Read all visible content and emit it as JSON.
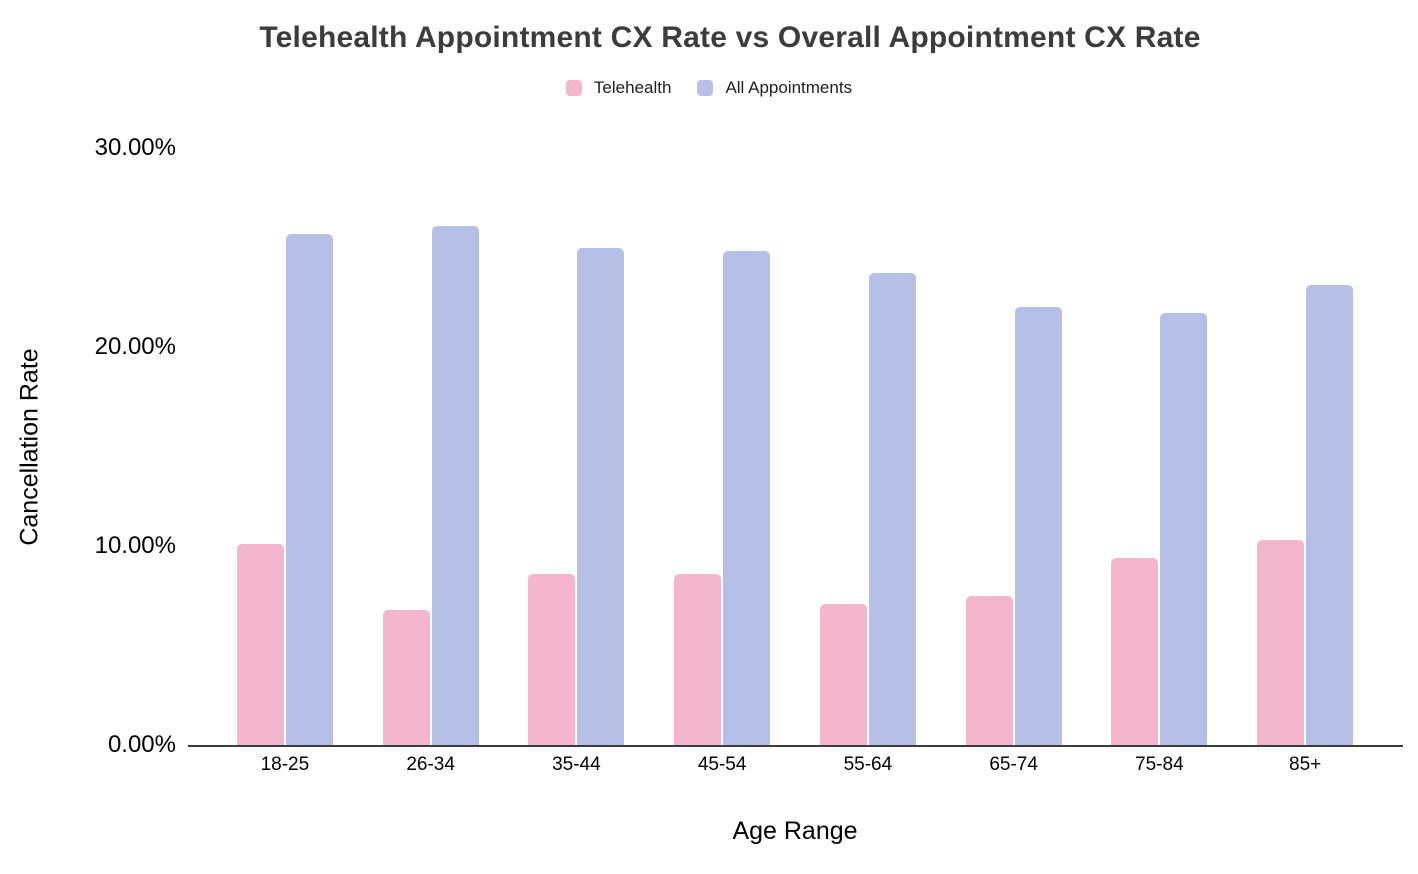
{
  "chart_data": {
    "type": "bar",
    "title": "Telehealth Appointment CX Rate vs Overall Appointment CX Rate",
    "xlabel": "Age Range",
    "ylabel": "Cancellation Rate",
    "categories": [
      "18-25",
      "26-34",
      "35-44",
      "45-54",
      "55-64",
      "65-74",
      "75-84",
      "85+"
    ],
    "series": [
      {
        "name": "Telehealth",
        "color": "#F3B6CC",
        "values": [
          10.1,
          6.8,
          8.6,
          8.6,
          7.1,
          7.5,
          9.4,
          10.3
        ]
      },
      {
        "name": "All Appointments",
        "color": "#B6C0E6",
        "values": [
          25.7,
          26.1,
          25.0,
          24.8,
          23.7,
          22.0,
          21.7,
          23.1
        ]
      }
    ],
    "value_unit": "percent",
    "ylim": [
      0,
      30
    ],
    "y_ticks": [
      {
        "value": 0,
        "label": "0.00%"
      },
      {
        "value": 10,
        "label": "10.00%"
      },
      {
        "value": 20,
        "label": "20.00%"
      },
      {
        "value": 30,
        "label": "30.00%"
      }
    ],
    "grid": false,
    "legend_position": "top"
  },
  "colors": {
    "title_text": "#3C3C3C",
    "axis_text": "#000000",
    "axis_line": "#3C3C3C",
    "telehealth": "#F3B6CC",
    "all_appointments": "#B6C0E6"
  }
}
